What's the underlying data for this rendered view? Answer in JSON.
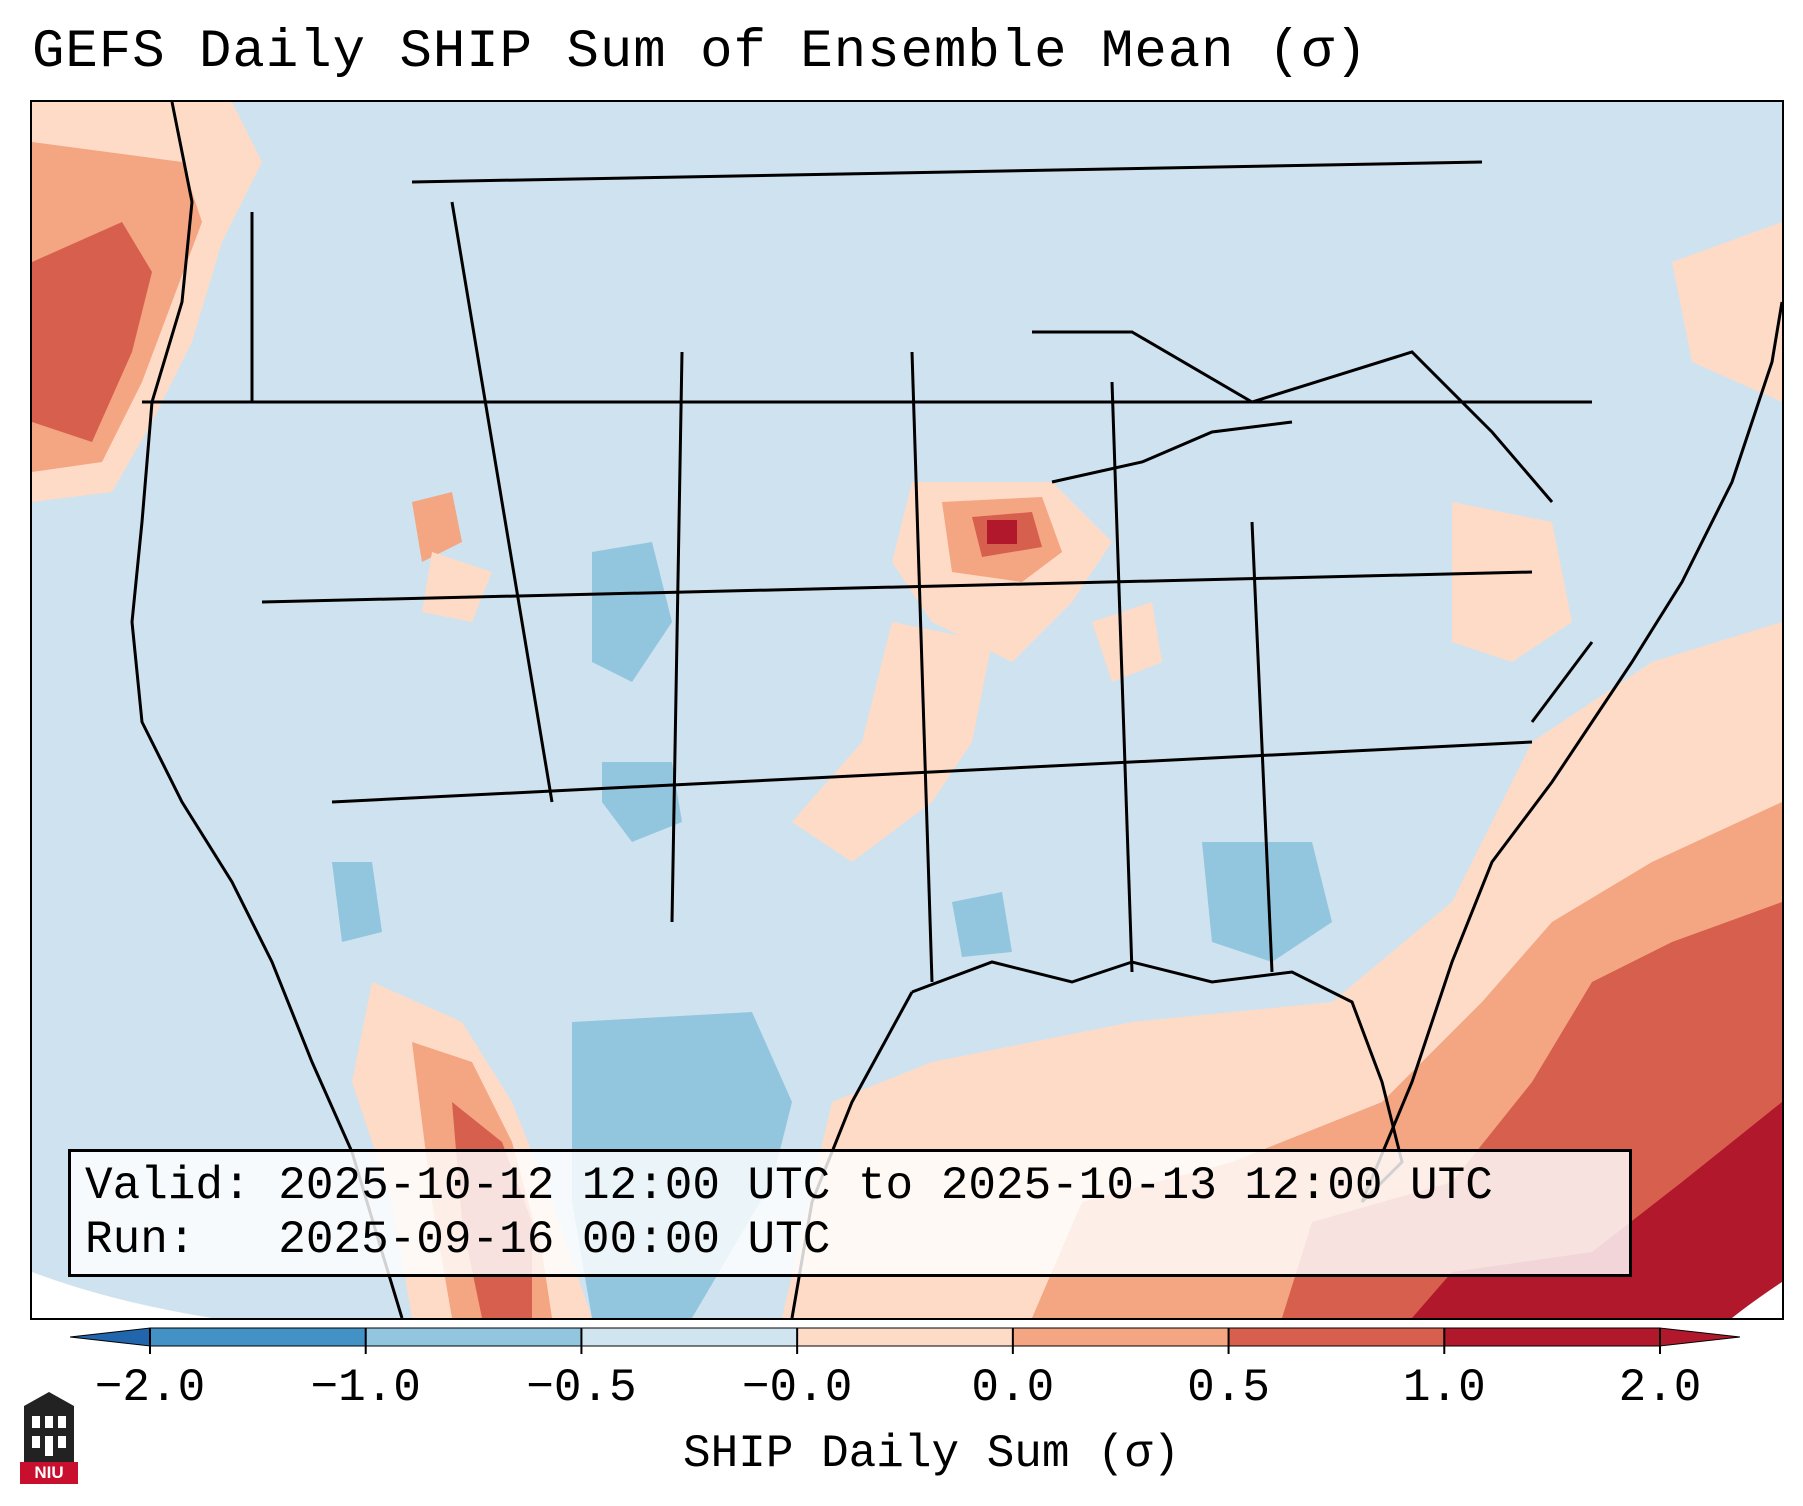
{
  "title": "GEFS Daily SHIP Sum of Ensemble Mean (σ)",
  "info": {
    "valid_label": "Valid:",
    "valid_value": "2025-10-12 12:00 UTC to 2025-10-13 12:00 UTC",
    "run_label": "Run:",
    "run_value": "2025-09-16 00:00 UTC"
  },
  "colorbar": {
    "label": "SHIP Daily Sum (σ)",
    "ticks": [
      "−2.0",
      "−1.0",
      "−0.5",
      "−0.0",
      "0.0",
      "0.5",
      "1.0",
      "2.0"
    ],
    "colors": [
      "#4292c6",
      "#92c5de",
      "#d1e5f0",
      "#f7f7f7",
      "#fddbc7",
      "#f4a582",
      "#d6604d",
      "#b2182b"
    ],
    "extend_low": "#2166ac",
    "extend_high": "#b2182b"
  },
  "logo": {
    "text": "NIU"
  },
  "map": {
    "background": "#d1e5f0",
    "ocean_fill": "#d1e5f0",
    "anomaly_regions": [
      {
        "name": "pacific-northwest-high",
        "level": 1.0
      },
      {
        "name": "iowa-high",
        "level": 2.0
      },
      {
        "name": "atlantic-southeast-high",
        "level": 1.0
      },
      {
        "name": "caribbean-high",
        "level": 2.0
      },
      {
        "name": "mexico-low",
        "level": -0.5
      },
      {
        "name": "alabama-low",
        "level": -0.5
      },
      {
        "name": "colorado-low",
        "level": -0.5
      }
    ]
  }
}
